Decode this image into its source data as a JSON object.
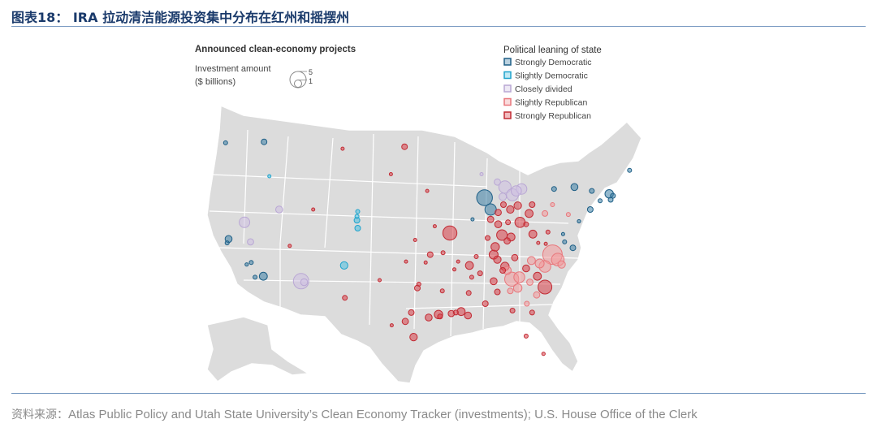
{
  "figure_title": "图表18： IRA 拉动清洁能源投资集中分布在红州和摇摆州",
  "map": {
    "heading": "Announced clean-economy projects",
    "size_legend": {
      "label_line1": "Investment amount",
      "label_line2": "($ billions)",
      "big": "5",
      "small": "1"
    },
    "lean_legend_title": "Political leaning of state",
    "categories": [
      {
        "key": "sd",
        "label": "Strongly Democratic",
        "stroke": "#1f5f86",
        "fill": "#3d7fa6"
      },
      {
        "key": "ld",
        "label": "Slightly Democratic",
        "stroke": "#1fa3cc",
        "fill": "#4cbfe0"
      },
      {
        "key": "cd",
        "label": "Closely divided",
        "stroke": "#b9a7d4",
        "fill": "#cdbfe2"
      },
      {
        "key": "lr",
        "label": "Slightly Republican",
        "stroke": "#e8777c",
        "fill": "#f29a9d"
      },
      {
        "key": "sr",
        "label": "Strongly Republican",
        "stroke": "#c12b34",
        "fill": "#d94049"
      }
    ],
    "projects": [
      {
        "lng": -117.2,
        "lat": 47.7,
        "amt": 0.4,
        "cat": "sd"
      },
      {
        "lng": -122.3,
        "lat": 47.6,
        "amt": 0.2,
        "cat": "sd"
      },
      {
        "lng": -116.5,
        "lat": 44.2,
        "amt": 0.1,
        "cat": "ld"
      },
      {
        "lng": -119.8,
        "lat": 39.5,
        "amt": 1.4,
        "cat": "cd"
      },
      {
        "lng": -115.2,
        "lat": 40.8,
        "amt": 0.6,
        "cat": "cd"
      },
      {
        "lng": -119.0,
        "lat": 37.5,
        "amt": 0.5,
        "cat": "cd"
      },
      {
        "lng": -121.9,
        "lat": 37.8,
        "amt": 0.6,
        "cat": "sd"
      },
      {
        "lng": -122.1,
        "lat": 37.4,
        "amt": 0.2,
        "cat": "sd"
      },
      {
        "lng": -118.9,
        "lat": 35.4,
        "amt": 0.2,
        "cat": "sd"
      },
      {
        "lng": -119.5,
        "lat": 35.2,
        "amt": 0.15,
        "cat": "sd"
      },
      {
        "lng": -117.3,
        "lat": 34.0,
        "amt": 0.8,
        "cat": "sd"
      },
      {
        "lng": -118.4,
        "lat": 33.9,
        "amt": 0.2,
        "cat": "sd"
      },
      {
        "lng": -112.3,
        "lat": 33.5,
        "amt": 3.0,
        "cat": "cd"
      },
      {
        "lng": -111.9,
        "lat": 33.4,
        "amt": 0.6,
        "cat": "cd"
      },
      {
        "lng": -113.8,
        "lat": 37.1,
        "amt": 0.1,
        "cat": "sr"
      },
      {
        "lng": -110.7,
        "lat": 40.8,
        "amt": 0.1,
        "cat": "sr"
      },
      {
        "lng": -104.8,
        "lat": 40.6,
        "amt": 0.2,
        "cat": "ld"
      },
      {
        "lng": -104.9,
        "lat": 39.7,
        "amt": 0.4,
        "cat": "ld"
      },
      {
        "lng": -104.8,
        "lat": 38.9,
        "amt": 0.4,
        "cat": "ld"
      },
      {
        "lng": -104.9,
        "lat": 40.1,
        "amt": 0.2,
        "cat": "ld"
      },
      {
        "lng": -106.6,
        "lat": 35.1,
        "amt": 0.7,
        "cat": "ld"
      },
      {
        "lng": -106.5,
        "lat": 31.8,
        "amt": 0.3,
        "cat": "sr"
      },
      {
        "lng": -106.8,
        "lat": 47.0,
        "amt": 0.1,
        "cat": "sr"
      },
      {
        "lng": -98.6,
        "lat": 47.2,
        "amt": 0.4,
        "cat": "sr"
      },
      {
        "lng": -95.6,
        "lat": 42.7,
        "amt": 0.1,
        "cat": "sr"
      },
      {
        "lng": -97.2,
        "lat": 37.7,
        "amt": 0.1,
        "cat": "sr"
      },
      {
        "lng": -92.6,
        "lat": 38.4,
        "amt": 2.5,
        "cat": "sr"
      },
      {
        "lng": -95.2,
        "lat": 36.2,
        "amt": 0.4,
        "cat": "sr"
      },
      {
        "lng": -96.9,
        "lat": 32.8,
        "amt": 0.4,
        "cat": "sr"
      },
      {
        "lng": -96.7,
        "lat": 33.2,
        "amt": 0.2,
        "cat": "sr"
      },
      {
        "lng": -97.7,
        "lat": 30.3,
        "amt": 0.4,
        "cat": "sr"
      },
      {
        "lng": -98.5,
        "lat": 29.4,
        "amt": 0.5,
        "cat": "sr"
      },
      {
        "lng": -95.4,
        "lat": 29.8,
        "amt": 0.6,
        "cat": "sr"
      },
      {
        "lng": -94.1,
        "lat": 30.1,
        "amt": 0.9,
        "cat": "sr"
      },
      {
        "lng": -97.4,
        "lat": 27.8,
        "amt": 0.7,
        "cat": "sr"
      },
      {
        "lng": -101.9,
        "lat": 33.6,
        "amt": 0.1,
        "cat": "sr"
      },
      {
        "lng": -93.5,
        "lat": 36.4,
        "amt": 0.2,
        "cat": "sr"
      },
      {
        "lng": -91.8,
        "lat": 30.3,
        "amt": 0.3,
        "cat": "sr"
      },
      {
        "lng": -91.1,
        "lat": 30.4,
        "amt": 0.8,
        "cat": "sr"
      },
      {
        "lng": -90.2,
        "lat": 30.0,
        "amt": 0.6,
        "cat": "sr"
      },
      {
        "lng": -92.4,
        "lat": 30.2,
        "amt": 0.5,
        "cat": "sr"
      },
      {
        "lng": -93.6,
        "lat": 32.5,
        "amt": 0.2,
        "cat": "sr"
      },
      {
        "lng": -90.1,
        "lat": 32.3,
        "amt": 0.3,
        "cat": "sr"
      },
      {
        "lng": -89.7,
        "lat": 33.9,
        "amt": 0.2,
        "cat": "sr"
      },
      {
        "lng": -90.0,
        "lat": 35.1,
        "amt": 0.8,
        "cat": "sr"
      },
      {
        "lng": -88.6,
        "lat": 34.3,
        "amt": 0.3,
        "cat": "sr"
      },
      {
        "lng": -86.8,
        "lat": 36.2,
        "amt": 1.0,
        "cat": "sr"
      },
      {
        "lng": -86.3,
        "lat": 35.7,
        "amt": 0.7,
        "cat": "sr"
      },
      {
        "lng": -85.3,
        "lat": 35.0,
        "amt": 0.9,
        "cat": "sr"
      },
      {
        "lng": -84.0,
        "lat": 35.9,
        "amt": 0.5,
        "cat": "sr"
      },
      {
        "lng": -86.8,
        "lat": 33.5,
        "amt": 0.6,
        "cat": "sr"
      },
      {
        "lng": -86.3,
        "lat": 32.4,
        "amt": 0.4,
        "cat": "sr"
      },
      {
        "lng": -85.6,
        "lat": 34.6,
        "amt": 0.4,
        "cat": "sr"
      },
      {
        "lng": -87.9,
        "lat": 31.2,
        "amt": 0.4,
        "cat": "sr"
      },
      {
        "lng": -85.7,
        "lat": 38.2,
        "amt": 1.4,
        "cat": "sr"
      },
      {
        "lng": -84.5,
        "lat": 38.0,
        "amt": 0.8,
        "cat": "sr"
      },
      {
        "lng": -86.6,
        "lat": 37.0,
        "amt": 0.9,
        "cat": "sr"
      },
      {
        "lng": -85.0,
        "lat": 37.6,
        "amt": 0.5,
        "cat": "sr"
      },
      {
        "lng": -87.2,
        "lat": 39.8,
        "amt": 0.5,
        "cat": "sr"
      },
      {
        "lng": -86.2,
        "lat": 40.5,
        "amt": 0.5,
        "cat": "sr"
      },
      {
        "lng": -85.5,
        "lat": 41.3,
        "amt": 0.4,
        "cat": "sr"
      },
      {
        "lng": -86.2,
        "lat": 39.3,
        "amt": 0.6,
        "cat": "sr"
      },
      {
        "lng": -84.6,
        "lat": 40.8,
        "amt": 0.7,
        "cat": "sr"
      },
      {
        "lng": -83.3,
        "lat": 39.5,
        "amt": 1.3,
        "cat": "sr"
      },
      {
        "lng": -82.1,
        "lat": 40.4,
        "amt": 0.8,
        "cat": "sr"
      },
      {
        "lng": -83.6,
        "lat": 41.2,
        "amt": 0.7,
        "cat": "sr"
      },
      {
        "lng": -81.7,
        "lat": 41.3,
        "amt": 0.4,
        "cat": "sr"
      },
      {
        "lng": -82.5,
        "lat": 39.3,
        "amt": 0.3,
        "cat": "sr"
      },
      {
        "lng": -84.3,
        "lat": 42.3,
        "amt": 1.8,
        "cat": "cd"
      },
      {
        "lng": -85.3,
        "lat": 43.1,
        "amt": 1.9,
        "cat": "cd"
      },
      {
        "lng": -83.8,
        "lat": 42.7,
        "amt": 1.3,
        "cat": "cd"
      },
      {
        "lng": -83.1,
        "lat": 42.9,
        "amt": 1.4,
        "cat": "cd"
      },
      {
        "lng": -85.6,
        "lat": 42.1,
        "amt": 0.7,
        "cat": "cd"
      },
      {
        "lng": -86.3,
        "lat": 43.6,
        "amt": 0.5,
        "cat": "cd"
      },
      {
        "lng": -88.4,
        "lat": 44.4,
        "amt": 0.1,
        "cat": "cd"
      },
      {
        "lng": -88.0,
        "lat": 42.0,
        "amt": 3.1,
        "cat": "sd"
      },
      {
        "lng": -87.2,
        "lat": 40.8,
        "amt": 1.6,
        "cat": "sd"
      },
      {
        "lng": -89.6,
        "lat": 39.8,
        "amt": 0.1,
        "cat": "sd"
      },
      {
        "lng": -80.0,
        "lat": 40.4,
        "amt": 0.4,
        "cat": "lr"
      },
      {
        "lng": -79.0,
        "lat": 41.3,
        "amt": 0.2,
        "cat": "lr"
      },
      {
        "lng": -76.9,
        "lat": 40.3,
        "amt": 0.2,
        "cat": "lr"
      },
      {
        "lng": -78.8,
        "lat": 42.9,
        "amt": 0.3,
        "cat": "sd"
      },
      {
        "lng": -76.1,
        "lat": 43.1,
        "amt": 0.6,
        "cat": "sd"
      },
      {
        "lng": -73.8,
        "lat": 42.7,
        "amt": 0.3,
        "cat": "sd"
      },
      {
        "lng": -74.0,
        "lat": 40.8,
        "amt": 0.4,
        "cat": "sd"
      },
      {
        "lng": -75.5,
        "lat": 39.6,
        "amt": 0.15,
        "cat": "sd"
      },
      {
        "lng": -71.5,
        "lat": 42.4,
        "amt": 0.9,
        "cat": "sd"
      },
      {
        "lng": -71.0,
        "lat": 42.2,
        "amt": 0.3,
        "cat": "sd"
      },
      {
        "lng": -71.3,
        "lat": 41.8,
        "amt": 0.3,
        "cat": "sd"
      },
      {
        "lng": -72.7,
        "lat": 41.7,
        "amt": 0.2,
        "cat": "sd"
      },
      {
        "lng": -68.8,
        "lat": 44.8,
        "amt": 0.2,
        "cat": "sd"
      },
      {
        "lng": -79.6,
        "lat": 38.5,
        "amt": 0.2,
        "cat": "sr"
      },
      {
        "lng": -81.6,
        "lat": 38.3,
        "amt": 0.8,
        "cat": "sr"
      },
      {
        "lng": -80.9,
        "lat": 37.4,
        "amt": 0.1,
        "cat": "sr"
      },
      {
        "lng": -79.0,
        "lat": 36.2,
        "amt": 4.8,
        "cat": "lr"
      },
      {
        "lng": -78.3,
        "lat": 35.7,
        "amt": 2.0,
        "cat": "lr"
      },
      {
        "lng": -77.8,
        "lat": 35.2,
        "amt": 0.7,
        "cat": "lr"
      },
      {
        "lng": -80.7,
        "lat": 35.3,
        "amt": 1.0,
        "cat": "lr"
      },
      {
        "lng": -81.8,
        "lat": 35.6,
        "amt": 0.8,
        "cat": "lr"
      },
      {
        "lng": -80.0,
        "lat": 35.0,
        "amt": 1.7,
        "cat": "lr"
      },
      {
        "lng": -82.5,
        "lat": 34.8,
        "amt": 0.6,
        "cat": "sr"
      },
      {
        "lng": -81.0,
        "lat": 34.0,
        "amt": 0.8,
        "cat": "sr"
      },
      {
        "lng": -80.0,
        "lat": 32.9,
        "amt": 2.4,
        "cat": "sr"
      },
      {
        "lng": -83.4,
        "lat": 33.9,
        "amt": 1.5,
        "cat": "lr"
      },
      {
        "lng": -84.4,
        "lat": 33.7,
        "amt": 2.5,
        "cat": "lr"
      },
      {
        "lng": -85.0,
        "lat": 34.6,
        "amt": 0.8,
        "cat": "lr"
      },
      {
        "lng": -82.0,
        "lat": 33.4,
        "amt": 0.5,
        "cat": "lr"
      },
      {
        "lng": -83.6,
        "lat": 32.8,
        "amt": 0.9,
        "cat": "lr"
      },
      {
        "lng": -81.1,
        "lat": 32.1,
        "amt": 0.5,
        "cat": "lr"
      },
      {
        "lng": -84.6,
        "lat": 32.5,
        "amt": 0.4,
        "cat": "lr"
      },
      {
        "lng": -82.4,
        "lat": 31.2,
        "amt": 0.3,
        "cat": "lr"
      },
      {
        "lng": -84.3,
        "lat": 30.5,
        "amt": 0.3,
        "cat": "sr"
      },
      {
        "lng": -81.7,
        "lat": 30.3,
        "amt": 0.3,
        "cat": "sr"
      },
      {
        "lng": -82.5,
        "lat": 27.9,
        "amt": 0.2,
        "cat": "sr"
      },
      {
        "lng": -80.2,
        "lat": 26.1,
        "amt": 0.15,
        "cat": "sr"
      },
      {
        "lng": -79.9,
        "lat": 37.3,
        "amt": 0.1,
        "cat": "sr"
      },
      {
        "lng": -77.4,
        "lat": 37.5,
        "amt": 0.2,
        "cat": "sd"
      },
      {
        "lng": -76.3,
        "lat": 36.9,
        "amt": 0.4,
        "cat": "sd"
      },
      {
        "lng": -77.6,
        "lat": 38.3,
        "amt": 0.1,
        "cat": "sd"
      },
      {
        "lng": -84.9,
        "lat": 39.5,
        "amt": 0.3,
        "cat": "sr"
      },
      {
        "lng": -87.6,
        "lat": 37.9,
        "amt": 0.3,
        "cat": "sr"
      },
      {
        "lng": -89.1,
        "lat": 36.0,
        "amt": 0.2,
        "cat": "sr"
      },
      {
        "lng": -91.5,
        "lat": 35.5,
        "amt": 0.1,
        "cat": "sr"
      },
      {
        "lng": -94.6,
        "lat": 39.1,
        "amt": 0.1,
        "cat": "sr"
      },
      {
        "lng": -100.3,
        "lat": 29.0,
        "amt": 0.1,
        "cat": "sr"
      },
      {
        "lng": -93.9,
        "lat": 29.9,
        "amt": 0.3,
        "cat": "sr"
      },
      {
        "lng": -92.0,
        "lat": 34.7,
        "amt": 0.1,
        "cat": "sr"
      },
      {
        "lng": -95.8,
        "lat": 35.4,
        "amt": 0.1,
        "cat": "sr"
      },
      {
        "lng": -98.4,
        "lat": 35.5,
        "amt": 0.1,
        "cat": "sr"
      },
      {
        "lng": -100.4,
        "lat": 44.4,
        "amt": 0.1,
        "cat": "sr"
      }
    ]
  },
  "source": {
    "label": "资料来源：",
    "text": "Atlas Public Policy and Utah State University’s Clean Economy Tracker (investments); U.S. House Office of the Clerk"
  }
}
